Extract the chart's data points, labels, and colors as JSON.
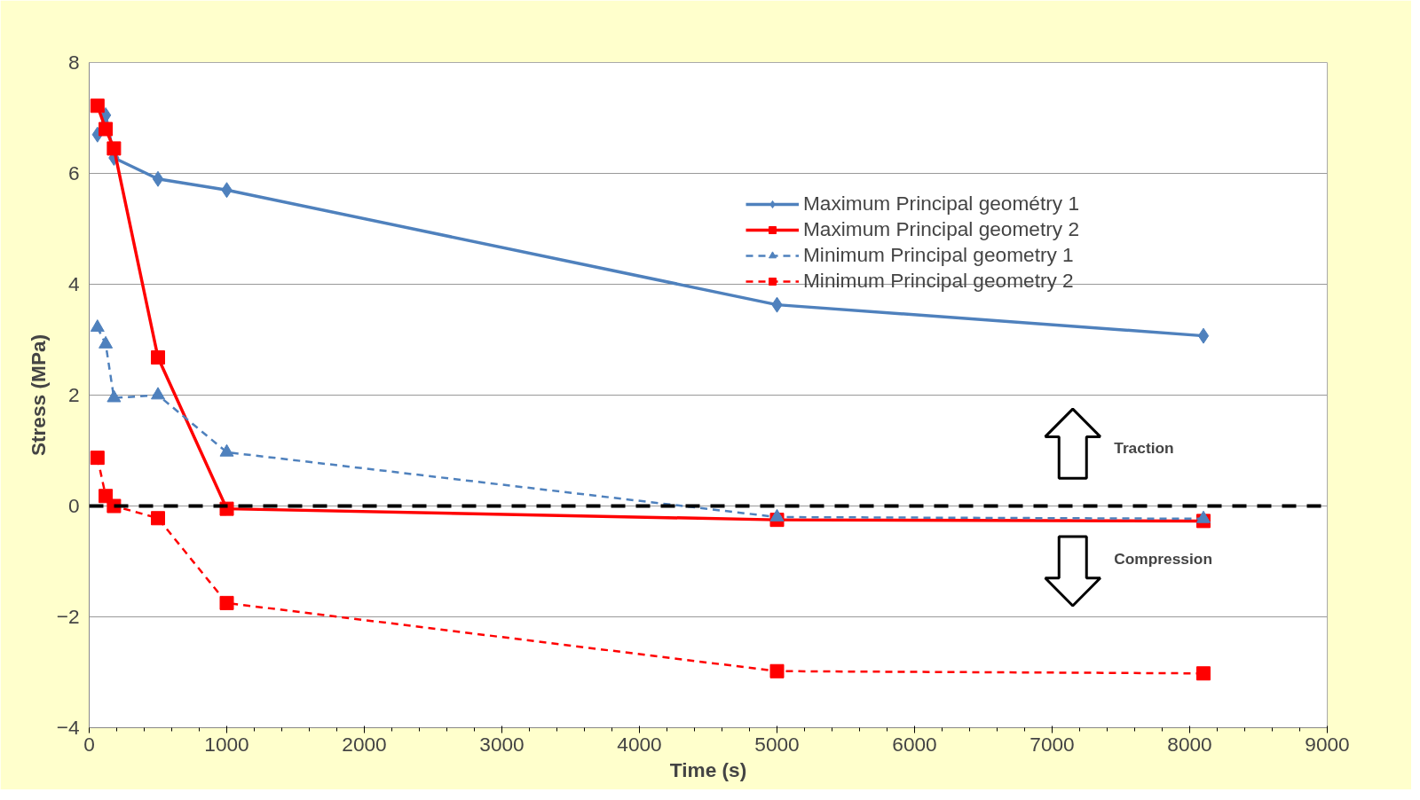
{
  "chart_data": {
    "type": "line",
    "xlabel": "Time (s)",
    "ylabel": "Stress (MPa)",
    "x": [
      60,
      120,
      180,
      500,
      1000,
      5000,
      8100
    ],
    "series": [
      {
        "name": "Maximum Principal geométry 1",
        "color": "#4f81bd",
        "values": [
          6.7,
          7.05,
          6.28,
          5.9,
          5.7,
          3.63,
          3.07
        ],
        "marker": "diamond",
        "line_style": "solid"
      },
      {
        "name": "Maximum Principal geometry 2",
        "color": "#ff0000",
        "values": [
          7.22,
          6.8,
          6.45,
          2.68,
          -0.05,
          -0.25,
          -0.27
        ],
        "marker": "square",
        "line_style": "solid"
      },
      {
        "name": "Minimum Principal geometry 1",
        "color": "#4f81bd",
        "values": [
          3.22,
          2.92,
          1.95,
          2.0,
          0.97,
          -0.2,
          -0.23
        ],
        "marker": "triangle",
        "line_style": "dashed"
      },
      {
        "name": "Minimum Principal geometry 2",
        "color": "#ff0000",
        "values": [
          0.87,
          0.18,
          0.0,
          -0.22,
          -1.75,
          -2.98,
          -3.02
        ],
        "marker": "square",
        "line_style": "dashed"
      }
    ],
    "xlim": [
      0,
      9000
    ],
    "xticks": [
      0,
      1000,
      2000,
      3000,
      4000,
      5000,
      6000,
      7000,
      8000,
      9000
    ],
    "ylim": [
      -4,
      8
    ],
    "yticks": [
      -4,
      -2,
      0,
      2,
      4,
      6,
      8
    ],
    "grid": "y",
    "legend": "top right",
    "ref_lines": [
      {
        "axis": "y",
        "value": 0,
        "color": "#000000",
        "line_style": "dashed"
      }
    ],
    "annotations": [
      "Traction",
      "Compression"
    ]
  }
}
